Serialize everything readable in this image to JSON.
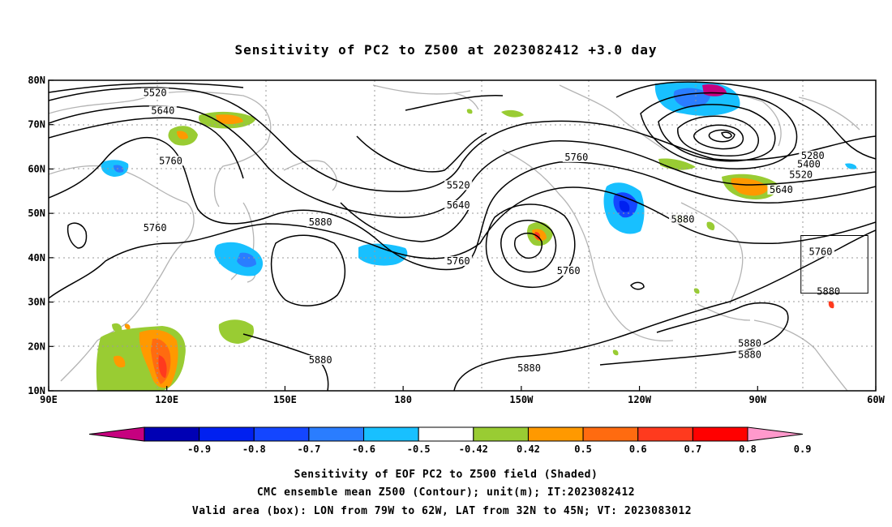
{
  "title": "Sensitivity of PC2 to Z500 at 2023082412 +3.0 day",
  "map": {
    "lon_range": [
      90,
      300
    ],
    "lat_range": [
      10,
      80
    ],
    "lon_ticks": [
      {
        "lon": 90,
        "label": "90E"
      },
      {
        "lon": 120,
        "label": "120E"
      },
      {
        "lon": 150,
        "label": "150E"
      },
      {
        "lon": 180,
        "label": "180"
      },
      {
        "lon": 210,
        "label": "150W"
      },
      {
        "lon": 240,
        "label": "120W"
      },
      {
        "lon": 270,
        "label": "90W"
      },
      {
        "lon": 300,
        "label": "60W"
      }
    ],
    "lat_ticks": [
      {
        "lat": 10,
        "label": "10N"
      },
      {
        "lat": 20,
        "label": "20N"
      },
      {
        "lat": 30,
        "label": "30N"
      },
      {
        "lat": 40,
        "label": "40N"
      },
      {
        "lat": 50,
        "label": "50N"
      },
      {
        "lat": 60,
        "label": "60N"
      },
      {
        "lat": 70,
        "label": "70N"
      },
      {
        "lat": 80,
        "label": "80N"
      }
    ],
    "grid": true,
    "valid_box": {
      "lon": [
        281,
        298
      ],
      "lat": [
        32,
        45
      ]
    },
    "contour_labels": [
      {
        "text": "5520",
        "lon": 117,
        "lat": 76.6
      },
      {
        "text": "5640",
        "lon": 119,
        "lat": 72.6
      },
      {
        "text": "5760",
        "lon": 121,
        "lat": 61.3
      },
      {
        "text": "5760",
        "lon": 117,
        "lat": 46.2
      },
      {
        "text": "5880",
        "lon": 159,
        "lat": 47.5
      },
      {
        "text": "5880",
        "lon": 159,
        "lat": 16.4
      },
      {
        "text": "5520",
        "lon": 194,
        "lat": 55.8
      },
      {
        "text": "5640",
        "lon": 194,
        "lat": 51.3
      },
      {
        "text": "5760",
        "lon": 194,
        "lat": 38.7
      },
      {
        "text": "5760",
        "lon": 224,
        "lat": 62.1
      },
      {
        "text": "5760",
        "lon": 222,
        "lat": 36.5
      },
      {
        "text": "5880",
        "lon": 251,
        "lat": 48.1
      },
      {
        "text": "5880",
        "lon": 212,
        "lat": 14.6
      },
      {
        "text": "5280",
        "lon": 284,
        "lat": 62.5
      },
      {
        "text": "5400",
        "lon": 283,
        "lat": 60.5
      },
      {
        "text": "5520",
        "lon": 281,
        "lat": 58.2
      },
      {
        "text": "5640",
        "lon": 276,
        "lat": 54.8
      },
      {
        "text": "5760",
        "lon": 286,
        "lat": 40.8
      },
      {
        "text": "5880",
        "lon": 288,
        "lat": 31.8
      },
      {
        "text": "5880",
        "lon": 268,
        "lat": 20.1
      },
      {
        "text": "5880",
        "lon": 268,
        "lat": 17.6
      }
    ]
  },
  "shading_legend": {
    "levels": [
      "-0.9",
      "-0.8",
      "-0.7",
      "-0.6",
      "-0.5",
      "-0.42",
      "0.42",
      "0.5",
      "0.6",
      "0.7",
      "0.8",
      "0.9"
    ],
    "colors": [
      "#c6007f",
      "#0000b4",
      "#0020f0",
      "#1446ff",
      "#2a7dff",
      "#18c0ff",
      "#ffffff",
      "#99cc33",
      "#ff9900",
      "#ff6b10",
      "#ff3a1e",
      "#ff0000",
      "#ff99cc"
    ]
  },
  "footer": {
    "line1": "Sensitivity of EOF PC2 to Z500 field (Shaded)",
    "line2": "CMC ensemble mean Z500 (Contour); unit(m); IT:2023082412",
    "line3": "Valid area (box): LON from 79W to 62W, LAT from 32N to 45N; VT: 2023083012"
  }
}
